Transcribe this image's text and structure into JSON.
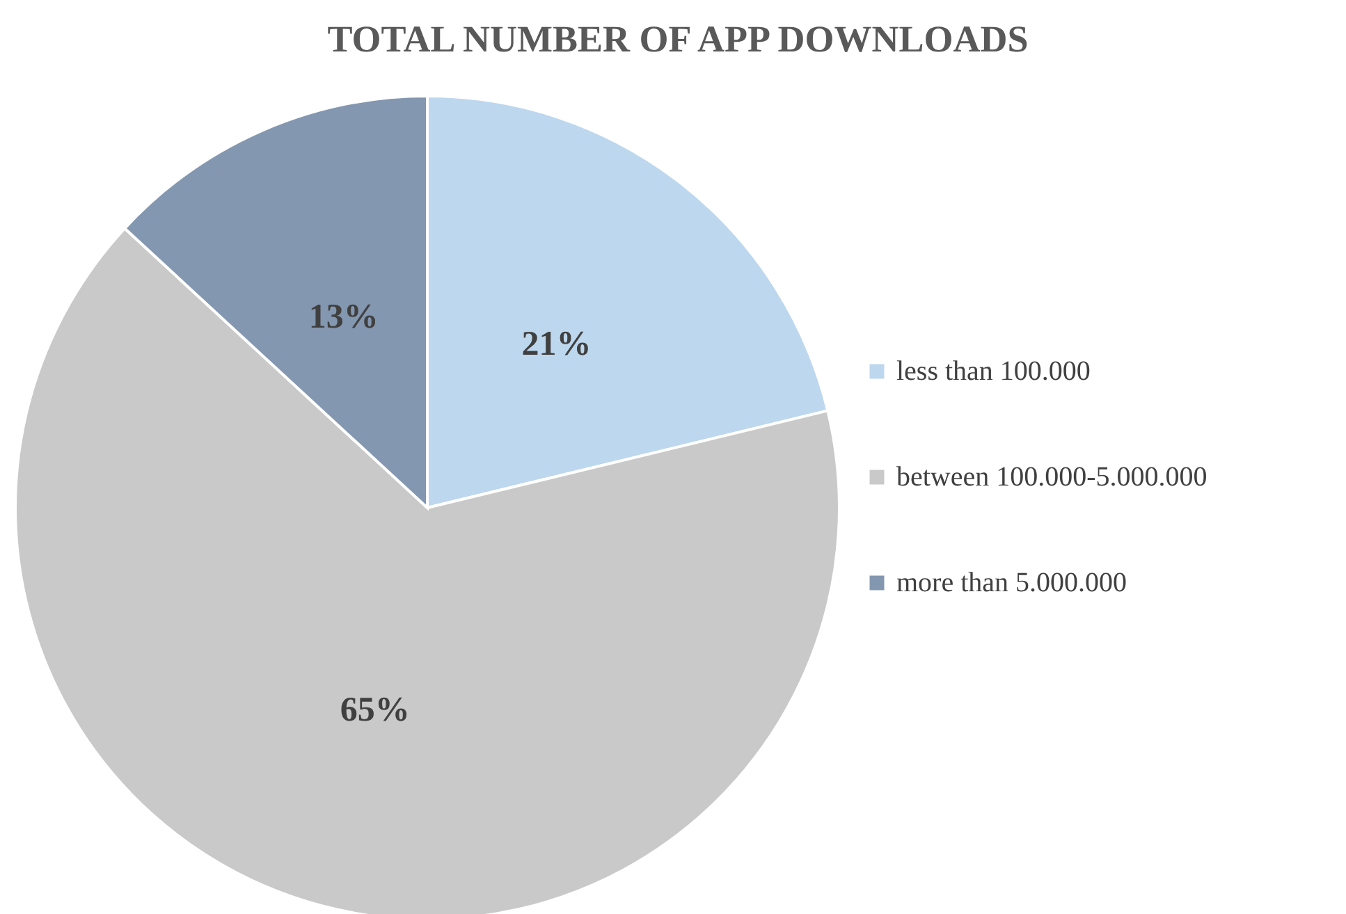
{
  "chart_data": {
    "type": "pie",
    "title": "TOTAL NUMBER OF APP DOWNLOADS",
    "categories": [
      "less than 100.000",
      "between 100.000-5.000.000",
      "more than 5.000.000"
    ],
    "values": [
      21,
      65,
      13
    ],
    "value_labels": [
      "21%",
      "65%",
      "13%"
    ],
    "colors": [
      "#bdd7ee",
      "#c9c9c9",
      "#8497b0"
    ],
    "legend": "right"
  }
}
